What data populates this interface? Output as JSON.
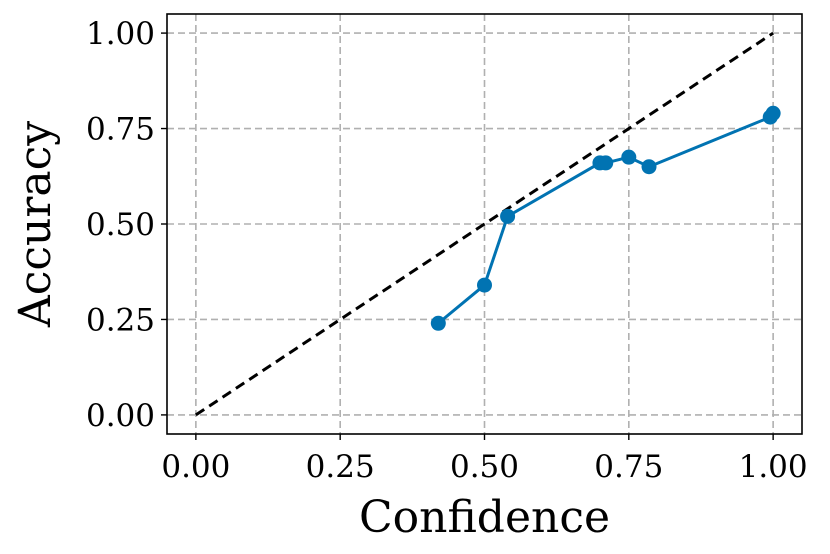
{
  "chart_data": {
    "type": "line",
    "xlabel": "Confidence",
    "ylabel": "Accuracy",
    "xlim": [
      -0.05,
      1.05
    ],
    "ylim": [
      -0.05,
      1.05
    ],
    "grid": true,
    "x_ticks": [
      "0.00",
      "0.25",
      "0.50",
      "0.75",
      "1.00"
    ],
    "y_ticks": [
      "0.00",
      "0.25",
      "0.50",
      "0.75",
      "1.00"
    ],
    "reference_line": {
      "x": [
        0,
        1
      ],
      "y": [
        0,
        1
      ],
      "style": "dashed",
      "color": "#000000"
    },
    "series": [
      {
        "color": "#0173b2",
        "x": [
          0.42,
          0.5,
          0.54,
          0.7,
          0.71,
          0.75,
          0.785,
          0.995,
          1.0
        ],
        "y": [
          0.24,
          0.34,
          0.52,
          0.66,
          0.66,
          0.675,
          0.65,
          0.78,
          0.79
        ]
      }
    ]
  }
}
